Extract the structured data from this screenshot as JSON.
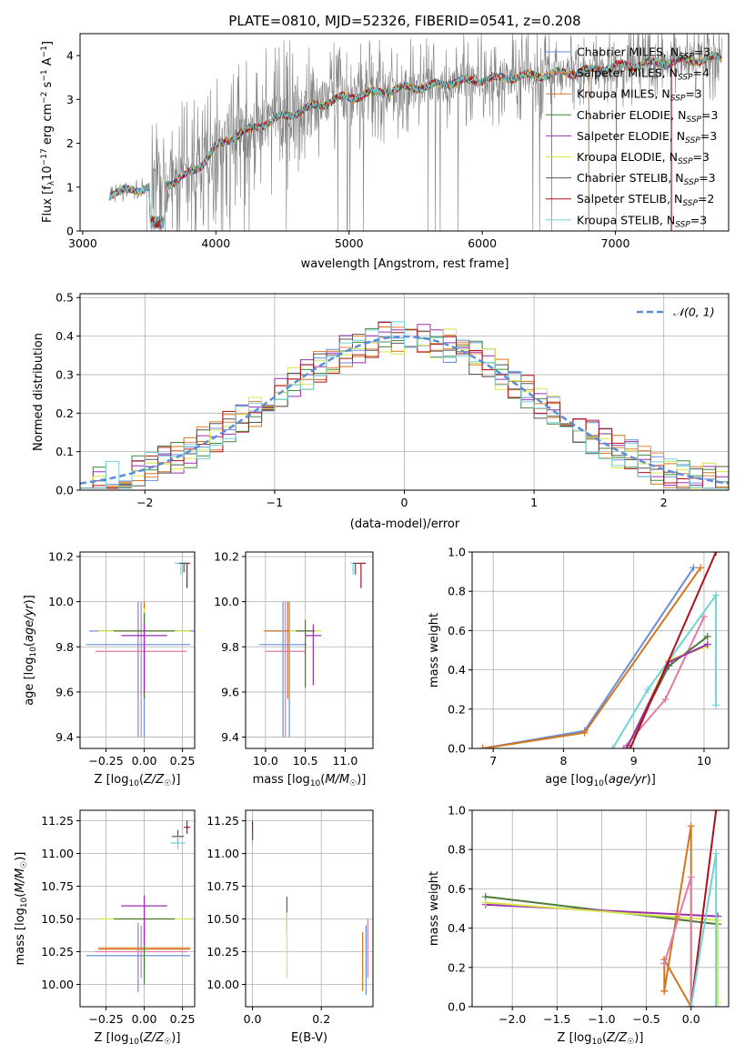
{
  "title": "PLATE=0810, MJD=52326, FIBERID=0541, z=0.208",
  "colors": {
    "chabrier_miles": "#6a8ddb",
    "salpeter_miles": "#e8843c",
    "kroupa_miles": "#d4751f",
    "chabrier_elodie": "#3f8a3a",
    "salpeter_elodie": "#9a2fb0",
    "kroupa_elodie": "#d6e84a",
    "chabrier_stelib": "#555555",
    "salpeter_stelib": "#b0101a",
    "kroupa_stelib": "#6fd3d6",
    "data_spectrum": "#808080",
    "normal_curve": "#5b8ed8",
    "pink": "#e07aa6",
    "dark_green": "#4d7a3a"
  },
  "chart_data": [
    {
      "id": "spectrum",
      "type": "line",
      "xlabel": "wavelength [Angstrom, rest frame]",
      "ylabel": "Flux [f_λ 10^-17 erg cm^-2 s^-1 A^-1]",
      "xlim": [
        2980,
        7850
      ],
      "ylim": [
        0,
        4.5
      ],
      "xticks": [
        "3000",
        "4000",
        "5000",
        "6000",
        "7000"
      ],
      "yticks": [
        "0",
        "1",
        "2",
        "3",
        "4"
      ],
      "grid": false,
      "legend": "top-right",
      "legend_entries": [
        {
          "name": "Chabrier MILES, N_SSP=3",
          "base": "Chabrier MILES, N",
          "sub": "SSP",
          "tail": "=3",
          "color_key": "chabrier_miles"
        },
        {
          "name": "Salpeter MILES, N_SSP=4",
          "base": "Salpeter MILES, N",
          "sub": "SSP",
          "tail": "=4",
          "color_key": "salpeter_miles"
        },
        {
          "name": "Kroupa MILES, N_SSP=3",
          "base": "Kroupa MILES, N",
          "sub": "SSP",
          "tail": "=3",
          "color_key": "kroupa_miles"
        },
        {
          "name": "Chabrier ELODIE, N_SSP=3",
          "base": "Chabrier ELODIE, N",
          "sub": "SSP",
          "tail": "=3",
          "color_key": "chabrier_elodie"
        },
        {
          "name": "Salpeter ELODIE, N_SSP=3",
          "base": "Salpeter ELODIE, N",
          "sub": "SSP",
          "tail": "=3",
          "color_key": "salpeter_elodie"
        },
        {
          "name": "Kroupa ELODIE, N_SSP=3",
          "base": "Kroupa ELODIE, N",
          "sub": "SSP",
          "tail": "=3",
          "color_key": "kroupa_elodie"
        },
        {
          "name": "Chabrier STELIB, N_SSP=3",
          "base": "Chabrier STELIB, N",
          "sub": "SSP",
          "tail": "=3",
          "color_key": "chabrier_stelib"
        },
        {
          "name": "Salpeter STELIB, N_SSP=2",
          "base": "Salpeter STELIB, N",
          "sub": "SSP",
          "tail": "=2",
          "color_key": "salpeter_stelib"
        },
        {
          "name": "Kroupa STELIB, N_SSP=3",
          "base": "Kroupa STELIB, N",
          "sub": "SSP",
          "tail": "=3",
          "color_key": "kroupa_stelib"
        }
      ],
      "model_continuum": {
        "x": [
          3200,
          3300,
          3400,
          3500,
          3600,
          3700,
          3800,
          3900,
          4000,
          4100,
          4200,
          4300,
          4400,
          4500,
          4600,
          4700,
          4800,
          4900,
          5000,
          5200,
          5400,
          5600,
          5800,
          6000,
          6200,
          6400,
          6600,
          6800,
          7000,
          7200,
          7400,
          7600,
          7800
        ],
        "y": [
          0.85,
          0.9,
          0.95,
          1.0,
          1.05,
          1.15,
          1.3,
          1.55,
          1.9,
          2.1,
          2.25,
          2.35,
          2.5,
          2.6,
          2.7,
          2.8,
          2.9,
          3.0,
          3.05,
          3.15,
          3.25,
          3.3,
          3.4,
          3.45,
          3.5,
          3.55,
          3.6,
          3.65,
          3.75,
          3.8,
          3.85,
          3.9,
          3.95
        ]
      }
    },
    {
      "id": "residuals",
      "type": "histogram",
      "xlabel": "(data-model)/error",
      "ylabel": "Normed distribution",
      "xlim": [
        -2.5,
        2.5
      ],
      "ylim": [
        0,
        0.51
      ],
      "xticks": [
        "−2",
        "−1",
        "0",
        "1",
        "2"
      ],
      "yticks": [
        "0.0",
        "0.1",
        "0.2",
        "0.3",
        "0.4",
        "0.5"
      ],
      "grid": true,
      "legend": "top-right",
      "legend_label": "𝒩(0, 1)",
      "reference_curve": "standard normal, mean 0, sigma 1"
    },
    {
      "id": "age_vs_Z",
      "type": "scatter",
      "xlabel": "Z [log₁₀(Z/Z☉)]",
      "ylabel": "age  [log₁₀(age/yr)]",
      "xlim": [
        -0.42,
        0.33
      ],
      "ylim": [
        9.35,
        10.22
      ],
      "xticks": [
        "−0.25",
        "0.00",
        "0.25"
      ],
      "yticks": [
        "9.4",
        "9.6",
        "9.8",
        "10.0",
        "10.2"
      ],
      "grid": true,
      "points": [
        {
          "x": 0.0,
          "y": 9.87,
          "xerr": 0.36,
          "yerr": [
            0.47,
            0.13
          ],
          "color_key": "chabrier_miles"
        },
        {
          "x": 0.0,
          "y": 9.87,
          "xerr": 0.3,
          "yerr": [
            0.3,
            0.13
          ],
          "color_key": "kroupa_miles"
        },
        {
          "x": -0.04,
          "y": 9.81,
          "xerr": 0.34,
          "yerr": [
            0.41,
            0.19
          ],
          "color_key": "chabrier_miles"
        },
        {
          "x": -0.02,
          "y": 9.78,
          "xerr": 0.3,
          "yerr": [
            0.38,
            0.22
          ],
          "color_key": "pink"
        },
        {
          "x": 0.0,
          "y": 9.87,
          "xerr": 0.3,
          "yerr": [
            0.25,
            0.1
          ],
          "color_key": "kroupa_elodie"
        },
        {
          "x": 0.0,
          "y": 9.87,
          "xerr": 0.2,
          "yerr": [
            0.3,
            0.08
          ],
          "color_key": "dark_green"
        },
        {
          "x": 0.0,
          "y": 9.85,
          "xerr": 0.15,
          "yerr": [
            0.25,
            0.05
          ],
          "color_key": "salpeter_elodie"
        },
        {
          "x": 0.28,
          "y": 10.17,
          "xerr": 0.02,
          "yerr": [
            0.11,
            0.0
          ],
          "color_key": "salpeter_stelib"
        },
        {
          "x": 0.24,
          "y": 10.17,
          "xerr": 0.04,
          "yerr": [
            0.05,
            0.0
          ],
          "color_key": "kroupa_stelib"
        },
        {
          "x": 0.26,
          "y": 10.17,
          "xerr": 0.03,
          "yerr": [
            0.04,
            0.0
          ],
          "color_key": "chabrier_stelib"
        }
      ]
    },
    {
      "id": "age_vs_mass",
      "type": "scatter",
      "xlabel": "mass [log₁₀(M/M☉)]",
      "ylabel": "",
      "xlim": [
        9.75,
        11.35
      ],
      "ylim": [
        9.35,
        10.22
      ],
      "xticks": [
        "10.0",
        "10.5",
        "11.0"
      ],
      "yticks": [
        "9.4",
        "9.6",
        "9.8",
        "10.0",
        "10.2"
      ],
      "grid": true,
      "points": [
        {
          "x": 10.3,
          "y": 9.87,
          "xerr": 0.3,
          "yerr": [
            0.47,
            0.13
          ],
          "color_key": "chabrier_miles"
        },
        {
          "x": 10.28,
          "y": 9.87,
          "xerr": 0.3,
          "yerr": [
            0.3,
            0.13
          ],
          "color_key": "kroupa_miles"
        },
        {
          "x": 10.22,
          "y": 9.81,
          "xerr": 0.3,
          "yerr": [
            0.41,
            0.19
          ],
          "color_key": "chabrier_miles"
        },
        {
          "x": 10.25,
          "y": 9.78,
          "xerr": 0.25,
          "yerr": [
            0.38,
            0.22
          ],
          "color_key": "pink"
        },
        {
          "x": 10.5,
          "y": 9.87,
          "xerr": 0.2,
          "yerr": [
            0.25,
            0.08
          ],
          "color_key": "kroupa_elodie"
        },
        {
          "x": 10.5,
          "y": 9.87,
          "xerr": 0.12,
          "yerr": [
            0.25,
            0.05
          ],
          "color_key": "dark_green"
        },
        {
          "x": 10.6,
          "y": 9.85,
          "xerr": 0.1,
          "yerr": [
            0.22,
            0.05
          ],
          "color_key": "salpeter_elodie"
        },
        {
          "x": 11.2,
          "y": 10.17,
          "xerr": 0.06,
          "yerr": [
            0.11,
            0.0
          ],
          "color_key": "salpeter_stelib"
        },
        {
          "x": 11.1,
          "y": 10.17,
          "xerr": 0.03,
          "yerr": [
            0.05,
            0.0
          ],
          "color_key": "kroupa_stelib"
        },
        {
          "x": 11.13,
          "y": 10.17,
          "xerr": 0.03,
          "yerr": [
            0.05,
            0.0
          ],
          "color_key": "chabrier_stelib"
        }
      ]
    },
    {
      "id": "mass_weight_vs_age",
      "type": "line",
      "xlabel": "age  [log₁₀(age/yr)]",
      "ylabel": "mass weight",
      "xlim": [
        6.7,
        10.35
      ],
      "ylim": [
        0,
        1
      ],
      "xticks": [
        "7",
        "8",
        "9",
        "10"
      ],
      "yticks": [
        "0.0",
        "0.2",
        "0.4",
        "0.6",
        "0.8",
        "1.0"
      ],
      "grid": true,
      "series": [
        {
          "color_key": "chabrier_miles",
          "x": [
            6.85,
            8.3,
            9.85
          ],
          "y": [
            0.0,
            0.09,
            0.92
          ]
        },
        {
          "color_key": "kroupa_miles",
          "x": [
            6.85,
            8.3,
            9.95
          ],
          "y": [
            0.0,
            0.08,
            0.92
          ]
        },
        {
          "color_key": "pink",
          "x": [
            8.85,
            9.45,
            10.0
          ],
          "y": [
            0.0,
            0.25,
            0.67
          ]
        },
        {
          "color_key": "kroupa_stelib",
          "x": [
            8.7,
            9.2,
            10.17,
            10.17
          ],
          "y": [
            0.0,
            0.3,
            0.78,
            0.22
          ]
        },
        {
          "color_key": "dark_green",
          "x": [
            8.9,
            9.5,
            10.05
          ],
          "y": [
            0.0,
            0.42,
            0.57
          ]
        },
        {
          "color_key": "kroupa_elodie",
          "x": [
            8.9,
            9.5,
            10.05
          ],
          "y": [
            0.0,
            0.45,
            0.52
          ]
        },
        {
          "color_key": "salpeter_elodie",
          "x": [
            8.9,
            9.5,
            10.05
          ],
          "y": [
            0.0,
            0.44,
            0.53
          ]
        },
        {
          "color_key": "salpeter_stelib",
          "x": [
            8.95,
            10.17
          ],
          "y": [
            0.0,
            1.0
          ]
        }
      ]
    },
    {
      "id": "mass_vs_Z",
      "type": "scatter",
      "xlabel": "Z [log₁₀(Z/Z☉)]",
      "ylabel": "mass [log₁₀(M/M☉)]",
      "xlim": [
        -0.42,
        0.33
      ],
      "ylim": [
        9.83,
        11.33
      ],
      "xticks": [
        "−0.25",
        "0.00",
        "0.25"
      ],
      "yticks": [
        "10.00",
        "10.25",
        "10.50",
        "10.75",
        "11.00",
        "11.25"
      ],
      "grid": true,
      "points": [
        {
          "x": -0.04,
          "y": 10.22,
          "xerr": 0.34,
          "yerr": [
            0.28,
            0.25
          ],
          "color_key": "chabrier_miles"
        },
        {
          "x": 0.0,
          "y": 10.27,
          "xerr": 0.3,
          "yerr": [
            0.22,
            0.2
          ],
          "color_key": "kroupa_miles"
        },
        {
          "x": 0.0,
          "y": 10.28,
          "xerr": 0.3,
          "yerr": [
            0.15,
            0.2
          ],
          "color_key": "salpeter_miles"
        },
        {
          "x": -0.02,
          "y": 10.25,
          "xerr": 0.3,
          "yerr": [
            0.2,
            0.2
          ],
          "color_key": "pink"
        },
        {
          "x": 0.0,
          "y": 10.5,
          "xerr": 0.3,
          "yerr": [
            0.4,
            0.1
          ],
          "color_key": "kroupa_elodie"
        },
        {
          "x": 0.0,
          "y": 10.5,
          "xerr": 0.2,
          "yerr": [
            0.5,
            0.1
          ],
          "color_key": "dark_green"
        },
        {
          "x": 0.0,
          "y": 10.6,
          "xerr": 0.15,
          "yerr": [
            0.3,
            0.08
          ],
          "color_key": "salpeter_elodie"
        },
        {
          "x": 0.28,
          "y": 11.2,
          "xerr": 0.02,
          "yerr": [
            0.05,
            0.05
          ],
          "color_key": "salpeter_stelib"
        },
        {
          "x": 0.22,
          "y": 11.13,
          "xerr": 0.04,
          "yerr": [
            0.05,
            0.05
          ],
          "color_key": "chabrier_stelib"
        },
        {
          "x": 0.22,
          "y": 11.08,
          "xerr": 0.05,
          "yerr": [
            0.05,
            0.05
          ],
          "color_key": "kroupa_stelib"
        }
      ]
    },
    {
      "id": "mass_vs_ebv",
      "type": "scatter",
      "xlabel": "E(B-V)",
      "ylabel": "",
      "xlim": [
        -0.02,
        0.35
      ],
      "ylim": [
        9.83,
        11.33
      ],
      "xticks": [
        "0.0",
        "0.2"
      ],
      "yticks": [
        "10.00",
        "10.25",
        "10.50",
        "10.75",
        "11.00",
        "11.25"
      ],
      "grid": true,
      "points": [
        {
          "x": 0.0,
          "y": 11.2,
          "xerr": 0,
          "yerr": [
            0.05,
            0.05
          ],
          "color_key": "salpeter_stelib"
        },
        {
          "x": 0.0,
          "y": 11.1,
          "xerr": 0,
          "yerr": [
            0.05,
            0.05
          ],
          "color_key": "kroupa_stelib"
        },
        {
          "x": 0.0,
          "y": 11.15,
          "xerr": 0,
          "yerr": [
            0.05,
            0.05
          ],
          "color_key": "chabrier_stelib"
        },
        {
          "x": 0.1,
          "y": 10.6,
          "xerr": 0,
          "yerr": [
            0.08,
            0.07
          ],
          "color_key": "salpeter_elodie"
        },
        {
          "x": 0.1,
          "y": 10.5,
          "xerr": 0,
          "yerr": [
            0.1,
            0.05
          ],
          "color_key": "dark_green"
        },
        {
          "x": 0.1,
          "y": 10.45,
          "xerr": 0,
          "yerr": [
            0.4,
            0.1
          ],
          "color_key": "kroupa_elodie"
        },
        {
          "x": 0.32,
          "y": 10.2,
          "xerr": 0,
          "yerr": [
            0.25,
            0.2
          ],
          "color_key": "kroupa_miles"
        },
        {
          "x": 0.33,
          "y": 10.2,
          "xerr": 0,
          "yerr": [
            0.28,
            0.25
          ],
          "color_key": "chabrier_miles"
        },
        {
          "x": 0.335,
          "y": 10.25,
          "xerr": 0,
          "yerr": [
            0.2,
            0.25
          ],
          "color_key": "pink"
        }
      ]
    },
    {
      "id": "mass_weight_vs_Z",
      "type": "line",
      "xlabel": "Z [log₁₀(Z/Z☉)]",
      "ylabel": "mass weight",
      "xlim": [
        -2.45,
        0.42
      ],
      "ylim": [
        0,
        1
      ],
      "xticks": [
        "−2.0",
        "−1.5",
        "−1.0",
        "−0.5",
        "0.0"
      ],
      "yticks": [
        "0.0",
        "0.2",
        "0.4",
        "0.6",
        "0.8",
        "1.0"
      ],
      "grid": true,
      "series": [
        {
          "color_key": "dark_green",
          "x": [
            -2.3,
            0.3
          ],
          "y": [
            0.56,
            0.42
          ]
        },
        {
          "color_key": "salpeter_elodie",
          "x": [
            -2.3,
            0.3
          ],
          "y": [
            0.52,
            0.46
          ]
        },
        {
          "color_key": "kroupa_elodie",
          "x": [
            -2.3,
            0.3,
            0.3
          ],
          "y": [
            0.53,
            0.44,
            0.02
          ]
        },
        {
          "color_key": "kroupa_miles",
          "x": [
            -0.3,
            0.0,
            0.0,
            -0.3,
            -0.3
          ],
          "y": [
            0.08,
            0.92,
            0.0,
            0.24,
            0.08
          ]
        },
        {
          "color_key": "pink",
          "x": [
            -0.3,
            0.0,
            0.0
          ],
          "y": [
            0.22,
            0.66,
            0.0
          ]
        },
        {
          "color_key": "salpeter_stelib",
          "x": [
            0.0,
            0.28
          ],
          "y": [
            0.0,
            1.0
          ]
        },
        {
          "color_key": "kroupa_stelib",
          "x": [
            0.0,
            0.28,
            0.28
          ],
          "y": [
            0.0,
            0.78,
            0.0
          ]
        }
      ]
    }
  ]
}
